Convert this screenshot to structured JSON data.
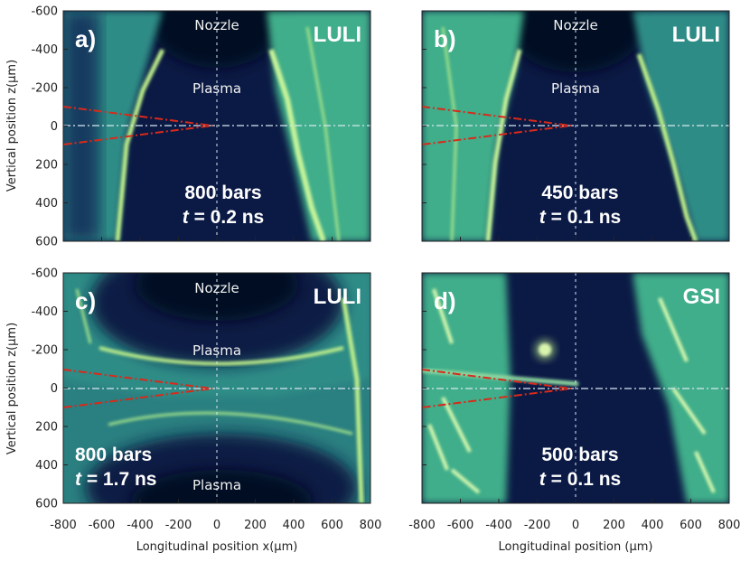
{
  "colors": {
    "background": "#0b1a45",
    "plasma_edge": "#bff08a",
    "plasma_mid": "#3fae8a",
    "dark": "#050c22",
    "laser": "#d82a1a",
    "axis_line": "#d8e8f0"
  },
  "axes": {
    "x_ticks": [
      "-800",
      "-600",
      "-400",
      "-200",
      "0",
      "200",
      "400",
      "600",
      "800"
    ],
    "y_ticks": [
      "-600",
      "-400",
      "-200",
      "0",
      "200",
      "400",
      "600"
    ],
    "y_label": "Vertical position z(µm)",
    "x_label_left": "Longitudinal position x(µm)",
    "x_label_right": "Longitudinal position  (µm)"
  },
  "panels": [
    {
      "tag": "a)",
      "source": "LULI",
      "nozzle": "Nozzle",
      "plasma": "Plasma",
      "plasma2": "",
      "pressure": "800 bars",
      "time_var": "t",
      "time_val": " = 0.2 ns"
    },
    {
      "tag": "b)",
      "source": "LULI",
      "nozzle": "Nozzle",
      "plasma": "Plasma",
      "plasma2": "",
      "pressure": "450 bars",
      "time_var": "t",
      "time_val": " = 0.1 ns"
    },
    {
      "tag": "c)",
      "source": "LULI",
      "nozzle": "Nozzle",
      "plasma": "Plasma",
      "plasma2": "Plasma",
      "pressure": "800 bars",
      "time_var": "t",
      "time_val": " = 1.7 ns"
    },
    {
      "tag": "d)",
      "source": "GSI",
      "nozzle": "",
      "plasma": "",
      "plasma2": "",
      "pressure": "500 bars",
      "time_var": "t",
      "time_val": " = 0.1 ns"
    }
  ]
}
